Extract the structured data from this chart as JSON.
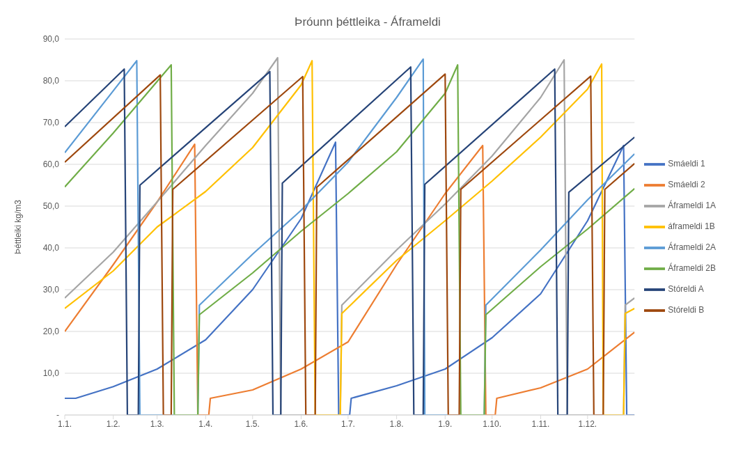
{
  "chart_data": {
    "type": "line",
    "title": "Þróunn þéttleika - Áframeldi",
    "ylabel": "Þéttleiki kg/m3",
    "xlim": [
      "--01-01",
      "--12-31"
    ],
    "xticks": [
      {
        "value": "--01-01",
        "label": "1.1."
      },
      {
        "value": "--02-01",
        "label": "1.2."
      },
      {
        "value": "--03-01",
        "label": "1.3."
      },
      {
        "value": "--04-01",
        "label": "1.4."
      },
      {
        "value": "--05-01",
        "label": "1.5."
      },
      {
        "value": "--06-01",
        "label": "1.6."
      },
      {
        "value": "--07-01",
        "label": "1.7."
      },
      {
        "value": "--08-01",
        "label": "1.8."
      },
      {
        "value": "--09-01",
        "label": "1.9."
      },
      {
        "value": "--10-01",
        "label": "1.10."
      },
      {
        "value": "--11-01",
        "label": "1.11."
      },
      {
        "value": "--12-01",
        "label": "1.12."
      }
    ],
    "ylim": [
      0,
      90
    ],
    "yticks": [
      {
        "value": 0,
        "label": "-"
      },
      {
        "value": 10,
        "label": "10,0"
      },
      {
        "value": 20,
        "label": "20,0"
      },
      {
        "value": 30,
        "label": "30,0"
      },
      {
        "value": 40,
        "label": "40,0"
      },
      {
        "value": 50,
        "label": "50,0"
      },
      {
        "value": 60,
        "label": "60,0"
      },
      {
        "value": 70,
        "label": "70,0"
      },
      {
        "value": 80,
        "label": "80,0"
      },
      {
        "value": 90,
        "label": "90,0"
      }
    ],
    "grid": "y",
    "legend": "right",
    "series": [
      {
        "name": "Smáeldi 1",
        "color": "#4472c4",
        "x": [
          "--01-01",
          "--01-08",
          "--02-01",
          "--03-01",
          "--04-01",
          "--05-01",
          "--06-01",
          "--06-23",
          "--06-25",
          "--07-02",
          "--07-03",
          "--08-01",
          "--09-01",
          "--10-01",
          "--11-01",
          "--12-01",
          "--12-24",
          "--12-26",
          "--12-31"
        ],
        "values": [
          4.0,
          4.0,
          6.8,
          11.0,
          18.0,
          30.0,
          47.0,
          65.3,
          0,
          0,
          4.0,
          7.0,
          11.0,
          18.5,
          29.0,
          46.5,
          64.5,
          0,
          0
        ]
      },
      {
        "name": "Smáeldi 2",
        "color": "#ed7d31",
        "x": [
          "--01-01",
          "--02-01",
          "--03-01",
          "--03-25",
          "--03-27",
          "--04-03",
          "--04-04",
          "--05-01",
          "--06-01",
          "--07-01",
          "--08-01",
          "--09-01",
          "--09-25",
          "--09-27",
          "--10-03",
          "--10-04",
          "--11-01",
          "--12-01",
          "--12-31"
        ],
        "values": [
          20.0,
          36.0,
          51.0,
          64.8,
          0,
          0,
          4.0,
          6.0,
          11.0,
          17.5,
          36.0,
          53.0,
          64.5,
          0,
          0,
          4.0,
          6.5,
          11.0,
          19.8
        ]
      },
      {
        "name": "Áframeldi 1A",
        "color": "#a5a5a5",
        "x": [
          "--01-01",
          "--02-01",
          "--03-01",
          "--04-01",
          "--05-01",
          "--05-17",
          "--05-19",
          "--06-26",
          "--06-27",
          "--08-01",
          "--09-01",
          "--10-01",
          "--11-01",
          "--11-16",
          "--11-18",
          "--12-24",
          "--12-25",
          "--12-31"
        ],
        "values": [
          28.0,
          39.0,
          51.0,
          64.5,
          77.0,
          85.5,
          0,
          0,
          26.3,
          39.5,
          50.5,
          62.0,
          76.0,
          85.0,
          0,
          0,
          26.3,
          28.0
        ]
      },
      {
        "name": "áframeldi 1B",
        "color": "#ffc000",
        "x": [
          "--01-01",
          "--02-01",
          "--03-01",
          "--04-01",
          "--05-01",
          "--06-01",
          "--06-08",
          "--06-10",
          "--06-26",
          "--06-27",
          "--08-01",
          "--09-01",
          "--10-01",
          "--11-01",
          "--12-01",
          "--12-10",
          "--12-11",
          "--12-24",
          "--12-25",
          "--12-31"
        ],
        "values": [
          25.5,
          34.5,
          45.0,
          53.5,
          64.0,
          79.0,
          84.8,
          0,
          0,
          24.3,
          37.0,
          46.5,
          56.0,
          66.5,
          78.0,
          84.0,
          0,
          0,
          24.3,
          25.5
        ]
      },
      {
        "name": "Áframeldi 2A",
        "color": "#5b9bd5",
        "x": [
          "--01-01",
          "--02-01",
          "--02-16",
          "--02-18",
          "--03-27",
          "--03-28",
          "--05-01",
          "--06-01",
          "--07-01",
          "--08-01",
          "--08-18",
          "--08-19",
          "--09-26",
          "--09-27",
          "--11-01",
          "--12-01",
          "--12-31"
        ],
        "values": [
          62.8,
          77.6,
          84.8,
          0,
          0,
          26.3,
          38.5,
          49.0,
          60.5,
          76.0,
          85.2,
          0,
          0,
          26.3,
          39.5,
          51.5,
          62.5
        ]
      },
      {
        "name": "Áframeldi 2B",
        "color": "#70ad47",
        "x": [
          "--01-01",
          "--02-01",
          "--03-10",
          "--03-12",
          "--03-27",
          "--03-28",
          "--05-01",
          "--06-01",
          "--07-01",
          "--08-01",
          "--09-01",
          "--09-09",
          "--09-11",
          "--09-26",
          "--09-27",
          "--11-01",
          "--12-01",
          "--12-31"
        ],
        "values": [
          54.6,
          67.5,
          83.8,
          0,
          0,
          24.0,
          34.0,
          44.0,
          53.0,
          63.0,
          77.0,
          83.8,
          0,
          0,
          24.0,
          35.5,
          44.5,
          54.2
        ]
      },
      {
        "name": "Stóreldi A",
        "color": "#264478",
        "x": [
          "--01-01",
          "--02-08",
          "--02-10",
          "--02-17",
          "--02-18",
          "--05-12",
          "--05-14",
          "--05-19",
          "--05-20",
          "--08-10",
          "--08-12",
          "--08-18",
          "--08-19",
          "--11-10",
          "--11-12",
          "--11-18",
          "--11-19",
          "--12-31"
        ],
        "values": [
          69.0,
          82.8,
          0,
          0,
          55.0,
          82.2,
          0,
          0,
          55.5,
          83.3,
          0,
          0,
          55.2,
          82.8,
          0,
          0,
          53.3,
          66.5
        ]
      },
      {
        "name": "Stóreldi B",
        "color": "#9e480e",
        "x": [
          "--01-01",
          "--03-03",
          "--03-05",
          "--03-10",
          "--03-11",
          "--06-02",
          "--06-04",
          "--06-10",
          "--06-11",
          "--09-01",
          "--09-03",
          "--09-10",
          "--09-11",
          "--12-03",
          "--12-05",
          "--12-11",
          "--12-12",
          "--12-31"
        ],
        "values": [
          60.5,
          81.4,
          0,
          0,
          54.0,
          81.0,
          0,
          0,
          54.5,
          81.6,
          0,
          0,
          54.0,
          81.1,
          0,
          0,
          54.0,
          60.2
        ]
      }
    ]
  }
}
